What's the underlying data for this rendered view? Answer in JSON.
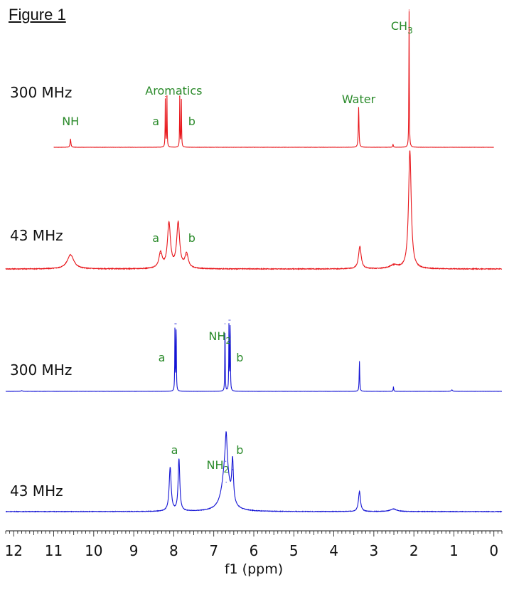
{
  "figure_title": "Figure 1",
  "chart_data": {
    "type": "line",
    "xlabel": "f1 (ppm)",
    "xlim": [
      12.2,
      -0.2
    ],
    "x_reversed": true,
    "x_ticks": [
      12,
      11,
      10,
      9,
      8,
      7,
      6,
      5,
      4,
      3,
      2,
      1,
      0
    ],
    "colors": {
      "red": "#e8161b",
      "blue": "#1414d4",
      "annotation": "#2a8a2a"
    },
    "spectra": [
      {
        "label": "300 MHz",
        "color": "#e8161b",
        "x_range": [
          11.0,
          0.0
        ],
        "peaks": [
          {
            "ppm": 10.58,
            "height": 0.06,
            "width": 0.012
          },
          {
            "ppm": 8.21,
            "height": 0.37,
            "width": 0.006
          },
          {
            "ppm": 8.17,
            "height": 0.37,
            "width": 0.006
          },
          {
            "ppm": 7.85,
            "height": 0.37,
            "width": 0.006
          },
          {
            "ppm": 7.81,
            "height": 0.35,
            "width": 0.006
          },
          {
            "ppm": 3.38,
            "height": 0.29,
            "width": 0.01
          },
          {
            "ppm": 2.52,
            "height": 0.02,
            "width": 0.01
          },
          {
            "ppm": 2.12,
            "height": 1.0,
            "width": 0.006
          }
        ],
        "annotations": [
          {
            "text": "NH",
            "ppm": 10.58
          },
          {
            "text": "Aromatics",
            "ppm": 8.0
          },
          {
            "text": "a",
            "ppm": 8.45
          },
          {
            "text": "b",
            "ppm": 7.55
          },
          {
            "text": "Water",
            "ppm": 3.38
          },
          {
            "text": "CH",
            "sub": "3",
            "ppm": 2.3
          }
        ]
      },
      {
        "label": "43 MHz",
        "color": "#e8161b",
        "x_range": [
          12.2,
          -0.2
        ],
        "peaks": [
          {
            "ppm": 10.58,
            "height": 0.12,
            "width": 0.1
          },
          {
            "ppm": 8.33,
            "height": 0.13,
            "width": 0.05
          },
          {
            "ppm": 8.12,
            "height": 0.38,
            "width": 0.045
          },
          {
            "ppm": 7.89,
            "height": 0.38,
            "width": 0.045
          },
          {
            "ppm": 7.68,
            "height": 0.12,
            "width": 0.05
          },
          {
            "ppm": 3.35,
            "height": 0.19,
            "width": 0.04
          },
          {
            "ppm": 2.5,
            "height": 0.03,
            "width": 0.12
          },
          {
            "ppm": 2.1,
            "height": 1.0,
            "width": 0.04
          }
        ],
        "annotations": [
          {
            "text": "a",
            "ppm": 8.45
          },
          {
            "text": "b",
            "ppm": 7.55
          }
        ]
      },
      {
        "label": "300 MHz",
        "color": "#1414d4",
        "x_range": [
          12.2,
          -0.2
        ],
        "peaks": [
          {
            "ppm": 11.8,
            "height": 0.01,
            "width": 0.02
          },
          {
            "ppm": 7.97,
            "height": 0.95,
            "width": 0.006
          },
          {
            "ppm": 7.94,
            "height": 0.95,
            "width": 0.006
          },
          {
            "ppm": 6.72,
            "height": 0.95,
            "width": 0.006
          },
          {
            "ppm": 6.62,
            "height": 1.0,
            "width": 0.006
          },
          {
            "ppm": 6.59,
            "height": 1.0,
            "width": 0.006
          },
          {
            "ppm": 3.36,
            "height": 0.42,
            "width": 0.008
          },
          {
            "ppm": 2.51,
            "height": 0.06,
            "width": 0.008
          },
          {
            "ppm": 1.05,
            "height": 0.02,
            "width": 0.02
          }
        ],
        "annotations": [
          {
            "text": "a",
            "ppm": 8.3
          },
          {
            "text": "NH",
            "sub": "2",
            "ppm": 6.85
          },
          {
            "text": "b",
            "ppm": 6.35
          }
        ]
      },
      {
        "label": "43 MHz",
        "color": "#1414d4",
        "x_range": [
          12.2,
          -0.2
        ],
        "peaks": [
          {
            "ppm": 8.09,
            "height": 0.52,
            "width": 0.03
          },
          {
            "ppm": 7.87,
            "height": 0.62,
            "width": 0.025
          },
          {
            "ppm": 6.7,
            "height": 0.6,
            "width": 0.1
          },
          {
            "ppm": 6.69,
            "height": 0.35,
            "width": 0.025
          },
          {
            "ppm": 6.53,
            "height": 0.5,
            "width": 0.025
          },
          {
            "ppm": 3.36,
            "height": 0.24,
            "width": 0.03
          },
          {
            "ppm": 2.51,
            "height": 0.03,
            "width": 0.1
          }
        ],
        "annotations": [
          {
            "text": "a",
            "ppm": 7.98
          },
          {
            "text": "NH",
            "sub": "2",
            "ppm": 6.9
          },
          {
            "text": "b",
            "ppm": 6.35
          }
        ]
      }
    ]
  }
}
